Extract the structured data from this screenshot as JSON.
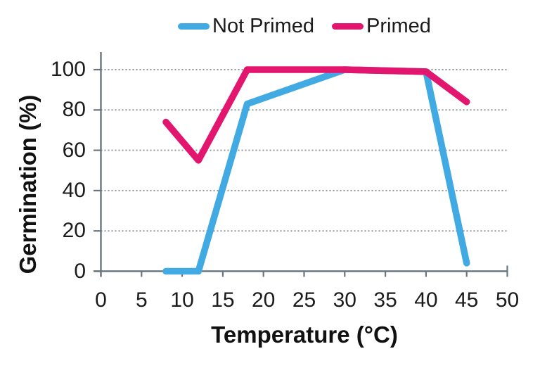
{
  "page": {
    "background": "#ffffff"
  },
  "colors": {
    "axis": "#6a767d",
    "gridline": "#8f9598",
    "text": "#1b1b1b"
  },
  "chart_data": {
    "type": "line",
    "title": "",
    "xlabel": "Temperature (°C)",
    "ylabel": "Germination (%)",
    "xlim": [
      0,
      50
    ],
    "ylim": [
      0,
      100
    ],
    "x_ticks": [
      0,
      5,
      10,
      15,
      20,
      25,
      30,
      35,
      40,
      45,
      50
    ],
    "y_ticks": [
      0,
      20,
      40,
      60,
      80,
      100
    ],
    "grid": "horizontal dotted",
    "legend_position": "top-center",
    "series": [
      {
        "name": "Not Primed",
        "color": "#41AAE2",
        "points": [
          [
            8,
            0
          ],
          [
            12,
            0
          ],
          [
            18,
            83
          ],
          [
            30,
            100
          ],
          [
            40,
            99
          ],
          [
            45,
            4
          ]
        ]
      },
      {
        "name": "Primed",
        "color": "#E2156F",
        "points": [
          [
            8,
            74
          ],
          [
            12,
            55
          ],
          [
            18,
            100
          ],
          [
            30,
            100
          ],
          [
            40,
            99
          ],
          [
            45,
            84
          ]
        ]
      }
    ]
  }
}
